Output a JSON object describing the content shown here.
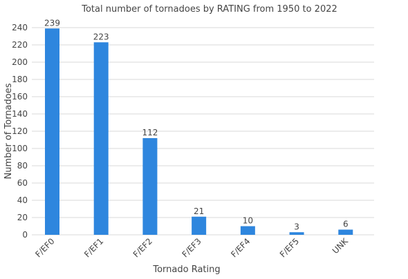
{
  "chart_data": {
    "type": "bar",
    "title": "Total number of tornadoes by RATING from 1950 to 2022",
    "xlabel": "Tornado Rating",
    "ylabel": "Number of Tornadoes",
    "categories": [
      "F/EF0",
      "F/EF1",
      "F/EF2",
      "F/EF3",
      "F/EF4",
      "F/EF5",
      "UNK"
    ],
    "values": [
      239,
      223,
      112,
      21,
      10,
      3,
      6
    ],
    "ylim": [
      0,
      240
    ],
    "yticks": [
      0,
      20,
      40,
      60,
      80,
      100,
      120,
      140,
      160,
      180,
      200,
      220,
      240
    ],
    "grid": true,
    "legend": "none",
    "colors": {
      "bar": "#2e86de"
    }
  }
}
